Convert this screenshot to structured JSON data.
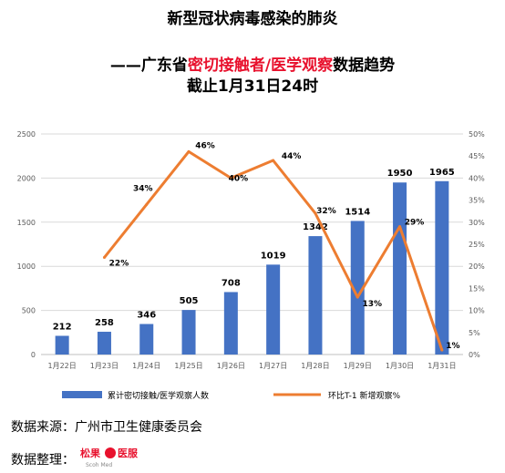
{
  "title": {
    "line1": "新型冠状病毒感染的肺炎",
    "line2_prefix": "——广东省",
    "line2_highlight": "密切接触者/医学观察",
    "line2_suffix": "数据趋势",
    "line3": "截止1月31日24时"
  },
  "colors": {
    "bar": "#4472c4",
    "line": "#ed7d31",
    "highlight": "#e8112d",
    "grid": "#d9d9d9",
    "axis_text": "#595959"
  },
  "chart_data": {
    "type": "bar",
    "categories": [
      "1月22日",
      "1月23日",
      "1月24日",
      "1月25日",
      "1月26日",
      "1月27日",
      "1月28日",
      "1月29日",
      "1月30日",
      "1月31日"
    ],
    "series": [
      {
        "name": "累计密切接触/医学观察人数",
        "type": "bar",
        "axis": "left",
        "values": [
          212,
          258,
          346,
          505,
          708,
          1019,
          1342,
          1514,
          1950,
          1965
        ],
        "labels": [
          "212",
          "258",
          "346",
          "505",
          "708",
          "1019",
          "1342",
          "1514",
          "1950",
          "1965"
        ]
      },
      {
        "name": "环比T-1 新增观察%",
        "type": "line",
        "axis": "right",
        "values": [
          null,
          22,
          34,
          46,
          40,
          44,
          32,
          13,
          29,
          1
        ],
        "labels": [
          "",
          "22%",
          "34%",
          "46%",
          "40%",
          "44%",
          "32%",
          "13%",
          "29%",
          "1%"
        ]
      }
    ],
    "y_left": {
      "lim": [
        0,
        2500
      ],
      "ticks": [
        "0",
        "500",
        "1000",
        "1500",
        "2000",
        "2500"
      ]
    },
    "y_right": {
      "lim": [
        0,
        50
      ],
      "ticks": [
        "0%",
        "5%",
        "10%",
        "15%",
        "20%",
        "25%",
        "30%",
        "35%",
        "40%",
        "45%",
        "50%"
      ]
    },
    "grid": true,
    "legend_position": "bottom"
  },
  "source": {
    "line1": "数据来源：广州市卫生健康委员会",
    "line2_label": "数据整理：",
    "logo_text": "松果",
    "logo_sub": "Scoh Med",
    "logo_text2": "医服"
  }
}
